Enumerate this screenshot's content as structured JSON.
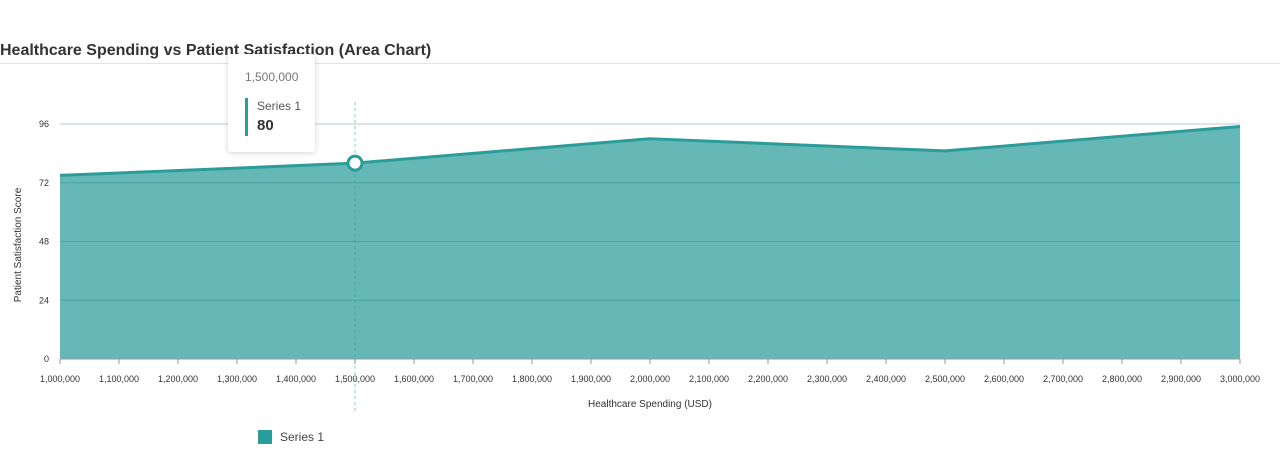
{
  "chart_data": {
    "type": "area",
    "title": "Healthcare Spending vs Patient Satisfaction (Area Chart)",
    "xlabel": "Healthcare Spending (USD)",
    "ylabel": "Patient Satisfaction Score",
    "x_ticks": [
      "1,000,000",
      "1,100,000",
      "1,200,000",
      "1,300,000",
      "1,400,000",
      "1,500,000",
      "1,600,000",
      "1,700,000",
      "1,800,000",
      "1,900,000",
      "2,000,000",
      "2,100,000",
      "2,200,000",
      "2,300,000",
      "2,400,000",
      "2,500,000",
      "2,600,000",
      "2,700,000",
      "2,800,000",
      "2,900,000",
      "3,000,000"
    ],
    "y_ticks": [
      "0",
      "24",
      "48",
      "72",
      "96"
    ],
    "xlim": [
      1000000,
      3000000
    ],
    "ylim": [
      0,
      96
    ],
    "series": [
      {
        "name": "Series 1",
        "color": "#2a9d9a",
        "x": [
          1000000,
          1500000,
          2000000,
          2500000,
          3000000
        ],
        "y": [
          75,
          80,
          90,
          85,
          95
        ]
      }
    ],
    "legend": "bottom-left",
    "grid": true,
    "tooltip": {
      "x_label": "1,500,000",
      "series": "Series 1",
      "value": "80"
    }
  }
}
